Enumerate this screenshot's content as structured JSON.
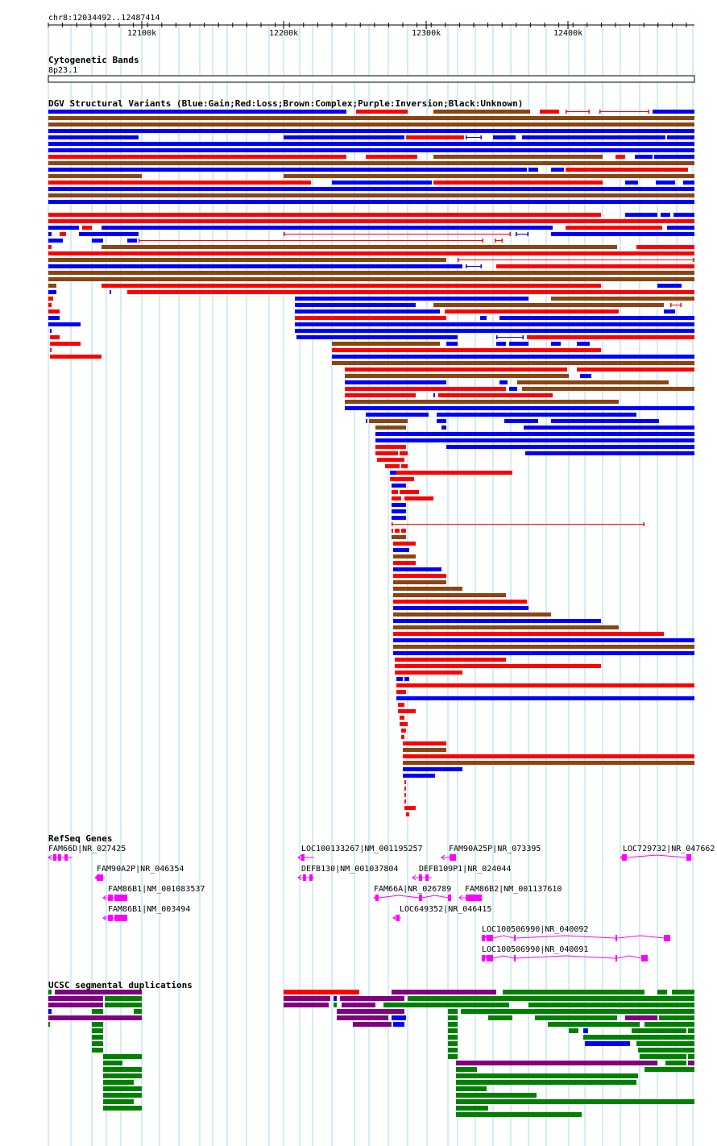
{
  "browser": {
    "position": "chr8:12034492..12487414",
    "ruler_ticks": [
      "12100k",
      "12200k",
      "12300k",
      "12400k"
    ],
    "colors": {
      "gain": "#0000ff",
      "loss": "#ff0000",
      "complex": "#8b4513",
      "inversion": "#800080",
      "unknown": "#000000",
      "gene": "#ff00ff",
      "segdup_green": "#008000",
      "segdup_purple": "#800080",
      "segdup_red": "#ff0000",
      "segdup_blue": "#0000ff",
      "grid": "#a8d8f0"
    }
  },
  "tracks": {
    "cytoband": {
      "title": "Cytogenetic Bands",
      "band_label": "8p23.1"
    },
    "dgv": {
      "title": "DGV Structural Variants (Blue:Gain;Red:Loss;Brown:Complex;Purple:Inversion;Black:Unknown)"
    },
    "refseq": {
      "title": "RefSeq Genes",
      "genes": [
        {
          "label": "FAM66D|NR_027425"
        },
        {
          "label": "LOC100133267|NM_001195257"
        },
        {
          "label": "FAM90A25P|NR_073395"
        },
        {
          "label": "LOC729732|NR_047662"
        },
        {
          "label": "FAM90A2P|NR_046354"
        },
        {
          "label": "DEFB130|NM_001037804"
        },
        {
          "label": "DEFB109P1|NR_024044"
        },
        {
          "label": "FAM86B1|NM_001083537"
        },
        {
          "label": "FAM66A|NR_026789"
        },
        {
          "label": "FAM86B2|NM_001137610"
        },
        {
          "label": "FAM86B1|NM_003494"
        },
        {
          "label": "LOC649352|NR_046415"
        },
        {
          "label": "LOC100506990|NR_040092"
        },
        {
          "label": "LOC100506990|NR_040091"
        }
      ]
    },
    "segdup": {
      "title": "UCSC segmental duplications"
    }
  }
}
